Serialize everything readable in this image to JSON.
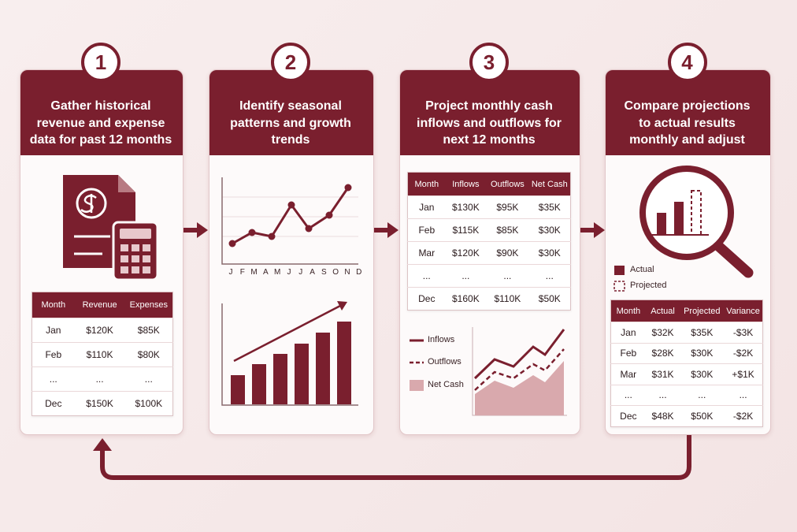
{
  "steps": [
    {
      "number": "1",
      "title": "Gather historical revenue and expense data for past 12 months",
      "table": {
        "header": [
          "Month",
          "Revenue",
          "Expenses"
        ],
        "rows": [
          [
            "Jan",
            "$120K",
            "$85K"
          ],
          [
            "Feb",
            "$110K",
            "$80K"
          ],
          [
            "...",
            "...",
            "..."
          ],
          [
            "Dec",
            "$150K",
            "$100K"
          ]
        ]
      }
    },
    {
      "number": "2",
      "title": "Identify seasonal patterns and growth trends",
      "months": [
        "J",
        "F",
        "M",
        "A",
        "M",
        "J",
        "J",
        "A",
        "S",
        "O",
        "N",
        "D"
      ]
    },
    {
      "number": "3",
      "title": "Project monthly cash inflows and outflows for next 12 months",
      "table": {
        "header": [
          "Month",
          "Inflows",
          "Outflows",
          "Net Cash"
        ],
        "rows": [
          [
            "Jan",
            "$130K",
            "$95K",
            "$35K"
          ],
          [
            "Feb",
            "$115K",
            "$85K",
            "$30K"
          ],
          [
            "Mar",
            "$120K",
            "$90K",
            "$30K"
          ],
          [
            "...",
            "...",
            "...",
            "..."
          ],
          [
            "Dec",
            "$160K",
            "$110K",
            "$50K"
          ]
        ]
      },
      "legend": [
        "Inflows",
        "Outflows",
        "Net Cash"
      ]
    },
    {
      "number": "4",
      "title": "Compare projections to actual results monthly and adjust",
      "legend": [
        "Actual",
        "Projected"
      ],
      "table": {
        "header": [
          "Month",
          "Actual",
          "Projected",
          "Variance"
        ],
        "rows": [
          [
            "Jan",
            "$32K",
            "$35K",
            "-$3K"
          ],
          [
            "Feb",
            "$28K",
            "$30K",
            "-$2K"
          ],
          [
            "Mar",
            "$31K",
            "$30K",
            "+$1K"
          ],
          [
            "...",
            "...",
            "...",
            "..."
          ],
          [
            "Dec",
            "$48K",
            "$50K",
            "-$2K"
          ]
        ]
      }
    }
  ]
}
